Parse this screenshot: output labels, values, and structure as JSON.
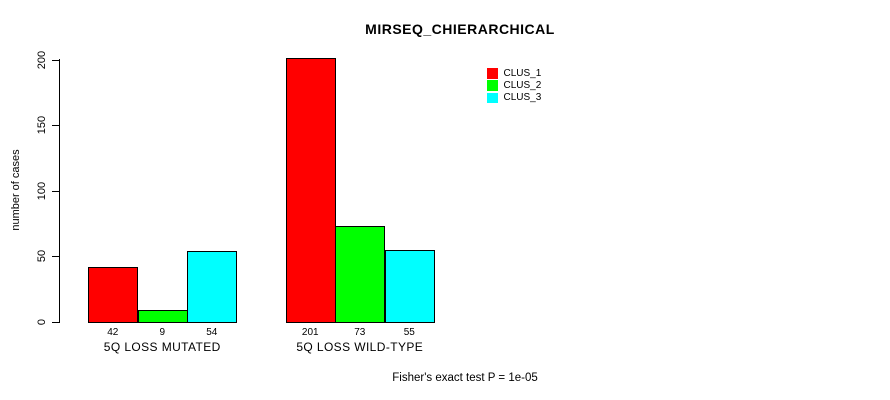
{
  "chart_data": {
    "type": "bar",
    "title": "MIRSEQ_CHIERARCHICAL",
    "xlabel": "",
    "ylabel": "number of cases",
    "ylim": [
      0,
      200
    ],
    "yticks": [
      0,
      50,
      100,
      150,
      200
    ],
    "grid": false,
    "legend_position": "top-right",
    "categories": [
      "5Q LOSS MUTATED",
      "5Q LOSS WILD-TYPE"
    ],
    "series": [
      {
        "name": "CLUS_1",
        "color": "#ff0000",
        "values": [
          42,
          201
        ]
      },
      {
        "name": "CLUS_2",
        "color": "#00ff00",
        "values": [
          9,
          73
        ]
      },
      {
        "name": "CLUS_3",
        "color": "#00ffff",
        "values": [
          54,
          55
        ]
      }
    ],
    "bar_value_labels": [
      [
        "42",
        "9",
        "54"
      ],
      [
        "201",
        "73",
        "55"
      ]
    ],
    "annotation": "Fisher's exact test P = 1e-05"
  }
}
